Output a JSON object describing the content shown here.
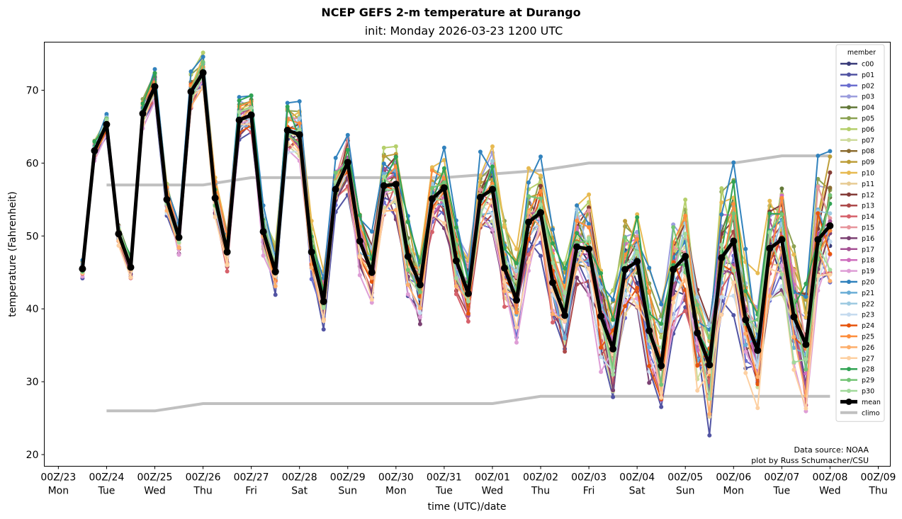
{
  "chart_data": {
    "type": "line",
    "title": "NCEP GEFS 2-m temperature at Durango",
    "subtitle": "init: Monday 2026-03-23 1200 UTC",
    "xlabel": "time (UTC)/date",
    "ylabel": "temperature (Fahrenheit)",
    "ylim": [
      18.4,
      76.6
    ],
    "xlim_hours_from_00Z23": [
      -7,
      414
    ],
    "grid": false,
    "legend": {
      "title": "member",
      "placement": "right"
    },
    "credits": [
      "Data source: NOAA",
      "plot by Russ Schumacher/CSU"
    ],
    "yticks": [
      20,
      30,
      40,
      50,
      60,
      70
    ],
    "xticks": [
      {
        "hour": 0,
        "label": "00Z/23",
        "day": "Mon"
      },
      {
        "hour": 24,
        "label": "00Z/24",
        "day": "Tue"
      },
      {
        "hour": 48,
        "label": "00Z/25",
        "day": "Wed"
      },
      {
        "hour": 72,
        "label": "00Z/26",
        "day": "Thu"
      },
      {
        "hour": 96,
        "label": "00Z/27",
        "day": "Fri"
      },
      {
        "hour": 120,
        "label": "00Z/28",
        "day": "Sat"
      },
      {
        "hour": 144,
        "label": "00Z/29",
        "day": "Sun"
      },
      {
        "hour": 168,
        "label": "00Z/30",
        "day": "Mon"
      },
      {
        "hour": 192,
        "label": "00Z/31",
        "day": "Tue"
      },
      {
        "hour": 216,
        "label": "00Z/01",
        "day": "Wed"
      },
      {
        "hour": 240,
        "label": "00Z/02",
        "day": "Thu"
      },
      {
        "hour": 264,
        "label": "00Z/03",
        "day": "Fri"
      },
      {
        "hour": 288,
        "label": "00Z/04",
        "day": "Sat"
      },
      {
        "hour": 312,
        "label": "00Z/05",
        "day": "Sun"
      },
      {
        "hour": 336,
        "label": "00Z/06",
        "day": "Mon"
      },
      {
        "hour": 360,
        "label": "00Z/07",
        "day": "Tue"
      },
      {
        "hour": 384,
        "label": "00Z/08",
        "day": "Wed"
      },
      {
        "hour": 408,
        "label": "00Z/09",
        "day": "Thu"
      }
    ],
    "time_start_hour": 12,
    "time_step_hours": 6,
    "mean": [
      45.5,
      61.7,
      65.3,
      50.3,
      45.7,
      66.8,
      70.5,
      55.0,
      49.8,
      69.8,
      72.4,
      55.2,
      47.8,
      65.9,
      66.6,
      50.6,
      45.1,
      64.5,
      63.9,
      47.8,
      41.0,
      56.4,
      60.1,
      49.3,
      45.0,
      56.9,
      57.1,
      47.2,
      43.3,
      55.1,
      56.6,
      46.6,
      42.1,
      55.3,
      56.4,
      45.6,
      41.2,
      51.9,
      53.2,
      43.6,
      39.1,
      48.5,
      48.2,
      39.0,
      34.5,
      45.4,
      46.5,
      37.0,
      32.2,
      45.4,
      47.2,
      36.7,
      32.3,
      47.0,
      49.3,
      38.5,
      34.3,
      48.3,
      49.5,
      38.9,
      35.1,
      49.5,
      51.4
    ],
    "climo": {
      "high": {
        "hours": [
          24,
          72,
          96,
          192,
          240,
          264,
          336,
          360,
          384
        ],
        "values": [
          57,
          57,
          58,
          58,
          59,
          60,
          60,
          61,
          61
        ]
      },
      "low": {
        "hours": [
          24,
          48,
          72,
          216,
          240,
          384
        ],
        "values": [
          26,
          26,
          27,
          27,
          28,
          28
        ]
      }
    },
    "members": [
      {
        "name": "c00",
        "color": "#393b79",
        "spread": -0.2
      },
      {
        "name": "p01",
        "color": "#5254a3",
        "spread": -1.0
      },
      {
        "name": "p02",
        "color": "#6b6ecf",
        "spread": -0.7
      },
      {
        "name": "p03",
        "color": "#9c9ede",
        "spread": 0.6
      },
      {
        "name": "p04",
        "color": "#637939",
        "spread": 0.3
      },
      {
        "name": "p05",
        "color": "#8ca252",
        "spread": 0.8
      },
      {
        "name": "p06",
        "color": "#b5cf6b",
        "spread": 0.9
      },
      {
        "name": "p07",
        "color": "#cedb9c",
        "spread": -0.4
      },
      {
        "name": "p08",
        "color": "#8c6d31",
        "spread": 0.1
      },
      {
        "name": "p09",
        "color": "#bd9e39",
        "spread": 0.7
      },
      {
        "name": "p10",
        "color": "#e7ba52",
        "spread": 1.0
      },
      {
        "name": "p11",
        "color": "#e7cb94",
        "spread": -0.5
      },
      {
        "name": "p12",
        "color": "#843c39",
        "spread": 0.4
      },
      {
        "name": "p13",
        "color": "#ad494a",
        "spread": -0.3
      },
      {
        "name": "p14",
        "color": "#d6616b",
        "spread": -0.6
      },
      {
        "name": "p15",
        "color": "#e7969c",
        "spread": 0.5
      },
      {
        "name": "p16",
        "color": "#7b4173",
        "spread": -0.8
      },
      {
        "name": "p17",
        "color": "#a55194",
        "spread": -0.1
      },
      {
        "name": "p18",
        "color": "#ce6dbd",
        "spread": 0.2
      },
      {
        "name": "p19",
        "color": "#de9ed6",
        "spread": -0.9
      },
      {
        "name": "p20",
        "color": "#3182bd",
        "spread": 1.1
      },
      {
        "name": "p21",
        "color": "#6baed6",
        "spread": 0.0
      },
      {
        "name": "p22",
        "color": "#9ecae1",
        "spread": 0.35
      },
      {
        "name": "p23",
        "color": "#c6dbef",
        "spread": -0.55
      },
      {
        "name": "p24",
        "color": "#e6550d",
        "spread": -0.25
      },
      {
        "name": "p25",
        "color": "#fd8d3c",
        "spread": 0.45
      },
      {
        "name": "p26",
        "color": "#fdae6b",
        "spread": -0.45
      },
      {
        "name": "p27",
        "color": "#fdd0a2",
        "spread": -0.75
      },
      {
        "name": "p28",
        "color": "#31a354",
        "spread": 0.65
      },
      {
        "name": "p29",
        "color": "#74c476",
        "spread": 0.25
      },
      {
        "name": "p30",
        "color": "#a1d99b",
        "spread": -0.15
      }
    ],
    "legend_extra": [
      {
        "name": "mean",
        "color": "#000000"
      },
      {
        "name": "climo",
        "color": "#c0c0c0"
      }
    ]
  }
}
